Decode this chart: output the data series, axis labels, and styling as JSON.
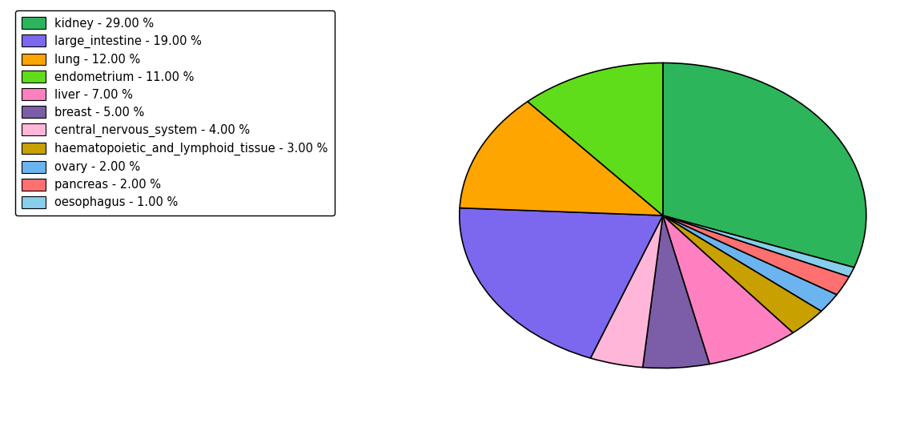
{
  "labels": [
    "kidney",
    "oesophagus",
    "pancreas",
    "ovary",
    "haematopoietic_and_lymphoid_tissue",
    "liver",
    "breast",
    "central_nervous_system",
    "large_intestine",
    "lung",
    "endometrium"
  ],
  "values": [
    29,
    1,
    2,
    2,
    3,
    7,
    5,
    4,
    19,
    12,
    11
  ],
  "colors": [
    "#2cb55a",
    "#87ceeb",
    "#ff7070",
    "#6cb4f0",
    "#c8a000",
    "#ff80c0",
    "#7b5ea7",
    "#ffb6d9",
    "#7b68ee",
    "#ffa500",
    "#5fdd1a"
  ],
  "legend_labels": [
    "kidney - 29.00 %",
    "large_intestine - 19.00 %",
    "lung - 12.00 %",
    "endometrium - 11.00 %",
    "liver - 7.00 %",
    "breast - 5.00 %",
    "central_nervous_system - 4.00 %",
    "haematopoietic_and_lymphoid_tissue - 3.00 %",
    "ovary - 2.00 %",
    "pancreas - 2.00 %",
    "oesophagus - 1.00 %"
  ],
  "legend_colors": [
    "#2cb55a",
    "#7b68ee",
    "#ffa500",
    "#5fdd1a",
    "#ff80c0",
    "#7b5ea7",
    "#ffb6d9",
    "#c8a000",
    "#6cb4f0",
    "#ff7070",
    "#87ceeb"
  ],
  "startangle": 90,
  "aspect_ratio": 0.75
}
